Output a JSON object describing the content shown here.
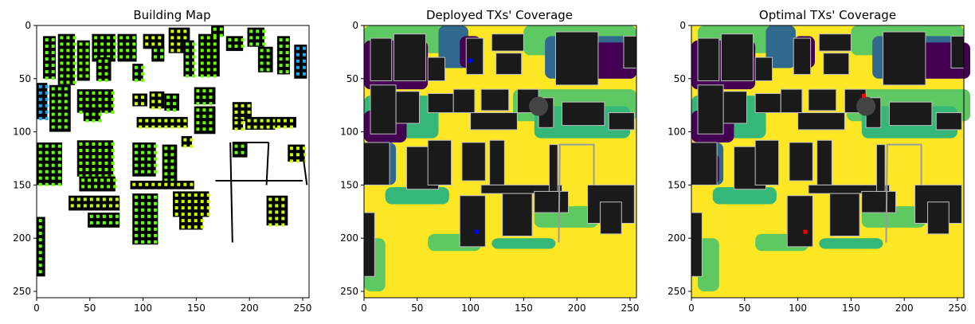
{
  "chart_data": [
    {
      "type": "heatmap",
      "title": "Building Map",
      "xlabel": "",
      "ylabel": "",
      "xlim": [
        0,
        256
      ],
      "ylim": [
        256,
        0
      ],
      "xticks": [
        0,
        50,
        100,
        150,
        200,
        250
      ],
      "yticks": [
        0,
        50,
        100,
        150,
        200,
        250
      ],
      "grid": false,
      "background_color": "#ffffff",
      "building_color": "#000000",
      "sensor_colors": [
        "#66ff00",
        "#ccff00",
        "#1aa7ff"
      ],
      "building_blocks": [
        [
          6,
          10,
          12,
          40,
          "#66ff00"
        ],
        [
          20,
          8,
          16,
          48,
          "#66ff00"
        ],
        [
          38,
          14,
          12,
          38,
          "#66ff00"
        ],
        [
          52,
          8,
          22,
          26,
          "#66ff00"
        ],
        [
          56,
          30,
          14,
          22,
          "#66ff00"
        ],
        [
          76,
          8,
          18,
          26,
          "#66ff00"
        ],
        [
          90,
          36,
          10,
          16,
          "#66ff00"
        ],
        [
          100,
          8,
          20,
          14,
          "#ccff00"
        ],
        [
          108,
          20,
          12,
          14,
          "#66ff00"
        ],
        [
          124,
          2,
          20,
          24,
          "#ccff00"
        ],
        [
          138,
          14,
          10,
          34,
          "#66ff00"
        ],
        [
          152,
          8,
          20,
          40,
          "#66ff00"
        ],
        [
          164,
          0,
          12,
          10,
          "#66ff00"
        ],
        [
          178,
          10,
          16,
          14,
          "#66ff00"
        ],
        [
          198,
          2,
          16,
          18,
          "#66ff00"
        ],
        [
          208,
          20,
          14,
          24,
          "#66ff00"
        ],
        [
          226,
          10,
          12,
          36,
          "#66ff00"
        ],
        [
          242,
          18,
          12,
          32,
          "#1aa7ff"
        ],
        [
          0,
          54,
          10,
          34,
          "#1aa7ff"
        ],
        [
          12,
          56,
          20,
          44,
          "#66ff00"
        ],
        [
          38,
          60,
          34,
          22,
          "#66ff00"
        ],
        [
          44,
          80,
          16,
          10,
          "#66ff00"
        ],
        [
          90,
          64,
          14,
          12,
          "#ccff00"
        ],
        [
          106,
          62,
          14,
          16,
          "#ccff00"
        ],
        [
          94,
          86,
          48,
          10,
          "#ccff00"
        ],
        [
          120,
          64,
          14,
          16,
          "#66ff00"
        ],
        [
          148,
          58,
          20,
          16,
          "#66ff00"
        ],
        [
          148,
          76,
          20,
          26,
          "#66ff00"
        ],
        [
          184,
          72,
          18,
          18,
          "#ccff00"
        ],
        [
          184,
          88,
          10,
          10,
          "#ccff00"
        ],
        [
          196,
          86,
          28,
          12,
          "#ccff00"
        ],
        [
          224,
          86,
          20,
          10,
          "#ccff00"
        ],
        [
          0,
          110,
          24,
          40,
          "#66ff00"
        ],
        [
          38,
          108,
          34,
          34,
          "#66ff00"
        ],
        [
          40,
          142,
          34,
          14,
          "#66ff00"
        ],
        [
          90,
          110,
          22,
          32,
          "#66ff00"
        ],
        [
          118,
          112,
          14,
          36,
          "#66ff00"
        ],
        [
          88,
          146,
          60,
          8,
          "#ccff00"
        ],
        [
          136,
          104,
          10,
          10,
          "#ccff00"
        ],
        [
          184,
          110,
          14,
          14,
          "#66ff00"
        ],
        [
          236,
          112,
          16,
          16,
          "#ccff00"
        ],
        [
          30,
          160,
          48,
          14,
          "#ccff00"
        ],
        [
          48,
          176,
          30,
          14,
          "#66ff00"
        ],
        [
          90,
          158,
          24,
          48,
          "#66ff00"
        ],
        [
          128,
          156,
          34,
          24,
          "#ccff00"
        ],
        [
          134,
          180,
          22,
          12,
          "#ccff00"
        ],
        [
          0,
          180,
          8,
          56,
          "#66ff00"
        ],
        [
          216,
          160,
          20,
          28,
          "#ccff00"
        ]
      ]
    },
    {
      "type": "heatmap",
      "title": "Deployed TXs' Coverage",
      "xlabel": "",
      "ylabel": "",
      "xlim": [
        0,
        256
      ],
      "ylim": [
        256,
        0
      ],
      "xticks": [
        0,
        50,
        100,
        150,
        200,
        250
      ],
      "yticks": [
        0,
        50,
        100,
        150,
        200,
        250
      ],
      "grid": false,
      "colormap": [
        "#440154",
        "#31688e",
        "#35b779",
        "#5ec962",
        "#fde725"
      ],
      "building_color": "#1a1a1a",
      "tx_markers": [
        {
          "x": 100,
          "y": 33,
          "color": "#0000ff"
        },
        {
          "x": 106,
          "y": 194,
          "color": "#0000ff"
        }
      ]
    },
    {
      "type": "heatmap",
      "title": "Optimal TXs' Coverage",
      "xlabel": "",
      "ylabel": "",
      "xlim": [
        0,
        256
      ],
      "ylim": [
        256,
        0
      ],
      "xticks": [
        0,
        50,
        100,
        150,
        200,
        250
      ],
      "yticks": [
        0,
        50,
        100,
        150,
        200,
        250
      ],
      "grid": false,
      "colormap": [
        "#440154",
        "#31688e",
        "#35b779",
        "#5ec962",
        "#fde725"
      ],
      "building_color": "#1a1a1a",
      "tx_markers": [
        {
          "x": 162,
          "y": 66,
          "color": "#ff0000"
        },
        {
          "x": 107,
          "y": 194,
          "color": "#ff0000"
        }
      ]
    }
  ]
}
